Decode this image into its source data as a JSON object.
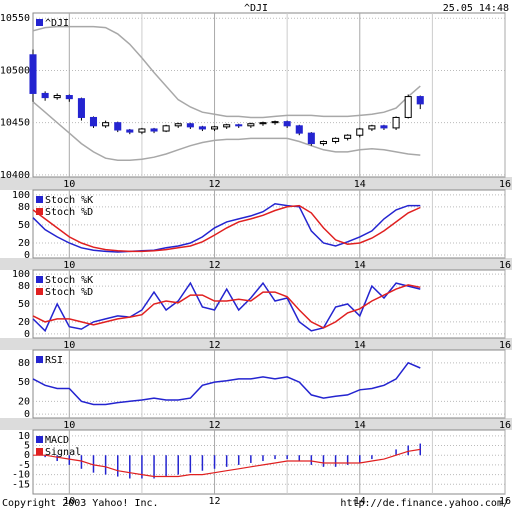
{
  "chart_data": [
    {
      "type": "candlestick",
      "title": "^DJI",
      "timestamp": "25.05 14:48",
      "x": [
        9.5,
        9.667,
        9.833,
        10,
        10.167,
        10.333,
        10.5,
        10.667,
        10.833,
        11,
        11.167,
        11.333,
        11.5,
        11.667,
        11.833,
        12,
        12.167,
        12.333,
        12.5,
        12.667,
        12.833,
        13,
        13.167,
        13.333,
        13.5,
        13.667,
        13.833,
        14,
        14.167,
        14.333,
        14.5,
        14.667,
        14.833
      ],
      "series": [
        {
          "name": "^DJI",
          "color": "#2424d0",
          "up_color": "#ffffff",
          "open": [
            10515,
            10478,
            10474,
            10476,
            10473,
            10455,
            10447,
            10450,
            10443,
            10441,
            10444,
            10442,
            10447,
            10449,
            10446,
            10444,
            10446,
            10448,
            10447,
            10449,
            10450,
            10451,
            10447,
            10440,
            10430,
            10432,
            10435,
            10438,
            10444,
            10447,
            10445,
            10455,
            10475
          ],
          "high": [
            10520,
            10480,
            10478,
            10477,
            10474,
            10456,
            10452,
            10451,
            10444,
            10445,
            10445,
            10448,
            10450,
            10450,
            10447,
            10447,
            10449,
            10449,
            10450,
            10451,
            10452,
            10452,
            10448,
            10441,
            10433,
            10436,
            10439,
            10445,
            10448,
            10448,
            10456,
            10477,
            10476
          ],
          "low": [
            10470,
            10471,
            10472,
            10470,
            10452,
            10445,
            10445,
            10441,
            10439,
            10439,
            10440,
            10441,
            10445,
            10444,
            10442,
            10442,
            10444,
            10445,
            10445,
            10447,
            10448,
            10445,
            10438,
            10428,
            10428,
            10430,
            10433,
            10436,
            10442,
            10443,
            10443,
            10454,
            10463
          ],
          "close": [
            10478,
            10474,
            10476,
            10473,
            10455,
            10447,
            10450,
            10443,
            10441,
            10444,
            10442,
            10447,
            10449,
            10446,
            10444,
            10446,
            10448,
            10447,
            10449,
            10450,
            10451,
            10447,
            10440,
            10430,
            10432,
            10435,
            10438,
            10444,
            10447,
            10445,
            10455,
            10475,
            10468
          ]
        }
      ],
      "bands": [
        {
          "color": "#a8a8a8",
          "values": [
            10538,
            10541,
            10542,
            10542,
            10542,
            10542,
            10541,
            10535,
            10525,
            10512,
            10498,
            10485,
            10472,
            10465,
            10460,
            10458,
            10456,
            10456,
            10455,
            10455,
            10456,
            10457,
            10457,
            10457,
            10456,
            10456,
            10456,
            10457,
            10458,
            10460,
            10464,
            10475,
            10485
          ]
        },
        {
          "color": "#a8a8a8",
          "values": [
            10470,
            10460,
            10450,
            10440,
            10430,
            10422,
            10416,
            10414,
            10414,
            10415,
            10417,
            10420,
            10424,
            10428,
            10431,
            10433,
            10434,
            10434,
            10435,
            10435,
            10435,
            10435,
            10432,
            10428,
            10424,
            10422,
            10422,
            10424,
            10425,
            10424,
            10422,
            10420,
            10419
          ]
        }
      ],
      "xlim": [
        9.5,
        16
      ],
      "xticks": [
        10,
        12,
        14,
        16
      ],
      "x_minor_grid": [
        11,
        13,
        15
      ],
      "ylim": [
        10398,
        10555
      ],
      "yticks": [
        10400,
        10450,
        10500,
        10550
      ],
      "grid": true
    },
    {
      "type": "line",
      "x": [
        9.5,
        9.667,
        9.833,
        10,
        10.167,
        10.333,
        10.5,
        10.667,
        10.833,
        11,
        11.167,
        11.333,
        11.5,
        11.667,
        11.833,
        12,
        12.167,
        12.333,
        12.5,
        12.667,
        12.833,
        13,
        13.167,
        13.333,
        13.5,
        13.667,
        13.833,
        14,
        14.167,
        14.333,
        14.5,
        14.667,
        14.833
      ],
      "series": [
        {
          "name": "Stoch %K",
          "color": "#2424d0",
          "values": [
            62,
            42,
            30,
            20,
            12,
            8,
            6,
            5,
            6,
            7,
            8,
            12,
            15,
            20,
            30,
            45,
            55,
            60,
            65,
            72,
            85,
            82,
            80,
            40,
            20,
            15,
            22,
            30,
            40,
            60,
            75,
            82,
            82
          ]
        },
        {
          "name": "Stoch %D",
          "color": "#e02020",
          "values": [
            75,
            60,
            45,
            30,
            20,
            13,
            9,
            7,
            6,
            6,
            7,
            9,
            12,
            15,
            22,
            33,
            45,
            55,
            60,
            66,
            74,
            80,
            82,
            70,
            45,
            25,
            18,
            20,
            28,
            40,
            55,
            70,
            79
          ]
        }
      ],
      "xlim": [
        9.5,
        16
      ],
      "xticks": [
        10,
        12,
        14,
        16
      ],
      "x_minor_grid": [
        11,
        13,
        15
      ],
      "ylim": [
        -5,
        108
      ],
      "yticks": [
        0,
        20,
        50,
        80,
        100
      ],
      "grid": true
    },
    {
      "type": "line",
      "x": [
        9.5,
        9.667,
        9.833,
        10,
        10.167,
        10.333,
        10.5,
        10.667,
        10.833,
        11,
        11.167,
        11.333,
        11.5,
        11.667,
        11.833,
        12,
        12.167,
        12.333,
        12.5,
        12.667,
        12.833,
        13,
        13.167,
        13.333,
        13.5,
        13.667,
        13.833,
        14,
        14.167,
        14.333,
        14.5,
        14.667,
        14.833
      ],
      "series": [
        {
          "name": "Stoch %K",
          "color": "#2424d0",
          "values": [
            25,
            5,
            50,
            12,
            8,
            20,
            25,
            30,
            28,
            40,
            70,
            40,
            55,
            85,
            45,
            40,
            75,
            40,
            60,
            85,
            55,
            60,
            20,
            5,
            10,
            45,
            50,
            30,
            80,
            60,
            85,
            80,
            75
          ]
        },
        {
          "name": "Stoch %D",
          "color": "#e02020",
          "values": [
            30,
            20,
            25,
            25,
            20,
            15,
            20,
            25,
            28,
            32,
            50,
            55,
            52,
            65,
            65,
            55,
            55,
            58,
            55,
            70,
            70,
            62,
            40,
            20,
            10,
            20,
            35,
            42,
            55,
            65,
            75,
            82,
            78
          ]
        }
      ],
      "xlim": [
        9.5,
        16
      ],
      "xticks": [
        10,
        12,
        14,
        16
      ],
      "x_minor_grid": [
        11,
        13,
        15
      ],
      "ylim": [
        -7,
        107
      ],
      "yticks": [
        0,
        20,
        50,
        80,
        100
      ],
      "grid": true
    },
    {
      "type": "line",
      "x": [
        9.5,
        9.667,
        9.833,
        10,
        10.167,
        10.333,
        10.5,
        10.667,
        10.833,
        11,
        11.167,
        11.333,
        11.5,
        11.667,
        11.833,
        12,
        12.167,
        12.333,
        12.5,
        12.667,
        12.833,
        13,
        13.167,
        13.333,
        13.5,
        13.667,
        13.833,
        14,
        14.167,
        14.333,
        14.5,
        14.667,
        14.833
      ],
      "series": [
        {
          "name": "RSI",
          "color": "#2424d0",
          "values": [
            55,
            45,
            40,
            40,
            20,
            15,
            15,
            18,
            20,
            22,
            25,
            22,
            22,
            25,
            45,
            50,
            52,
            55,
            55,
            58,
            55,
            58,
            50,
            30,
            25,
            28,
            30,
            38,
            40,
            45,
            55,
            80,
            72
          ]
        }
      ],
      "xlim": [
        9.5,
        16
      ],
      "xticks": [
        10,
        12,
        14,
        16
      ],
      "x_minor_grid": [
        11,
        13,
        15
      ],
      "ylim": [
        -6,
        100
      ],
      "yticks": [
        0,
        20,
        50,
        80
      ],
      "grid": true
    },
    {
      "type": "combo",
      "x": [
        9.5,
        9.667,
        9.833,
        10,
        10.167,
        10.333,
        10.5,
        10.667,
        10.833,
        11,
        11.167,
        11.333,
        11.5,
        11.667,
        11.833,
        12,
        12.167,
        12.333,
        12.5,
        12.667,
        12.833,
        13,
        13.167,
        13.333,
        13.5,
        13.667,
        13.833,
        14,
        14.167,
        14.333,
        14.5,
        14.667,
        14.833
      ],
      "series": [
        {
          "name": "MACD",
          "color": "#2424d0",
          "style": "bar",
          "values": [
            0,
            -1,
            -3,
            -5,
            -7,
            -9,
            -10,
            -11,
            -12,
            -12,
            -12,
            -11,
            -10,
            -9,
            -8,
            -7,
            -6,
            -5,
            -4,
            -3,
            -2,
            -2,
            -3,
            -5,
            -6,
            -6,
            -5,
            -4,
            -2,
            0,
            3,
            5,
            6
          ]
        },
        {
          "name": "Signal",
          "color": "#e02020",
          "style": "line",
          "values": [
            0,
            0,
            -1,
            -2,
            -3,
            -5,
            -6,
            -8,
            -9,
            -10,
            -11,
            -11,
            -11,
            -10,
            -10,
            -9,
            -8,
            -7,
            -6,
            -5,
            -4,
            -3,
            -3,
            -3,
            -4,
            -4,
            -4,
            -4,
            -3,
            -2,
            0,
            2,
            3
          ]
        }
      ],
      "xlim": [
        9.5,
        16
      ],
      "xticks": [
        10,
        12,
        14,
        16
      ],
      "x_minor_grid": [
        11,
        13,
        15
      ],
      "ylim": [
        -20,
        13
      ],
      "yticks": [
        -15,
        -10,
        -5,
        0,
        5,
        10
      ],
      "grid": true
    }
  ],
  "footer": {
    "copyright": "Copyright 2003 Yahoo! Inc.",
    "url": "http://de.finance.yahoo.com/"
  }
}
